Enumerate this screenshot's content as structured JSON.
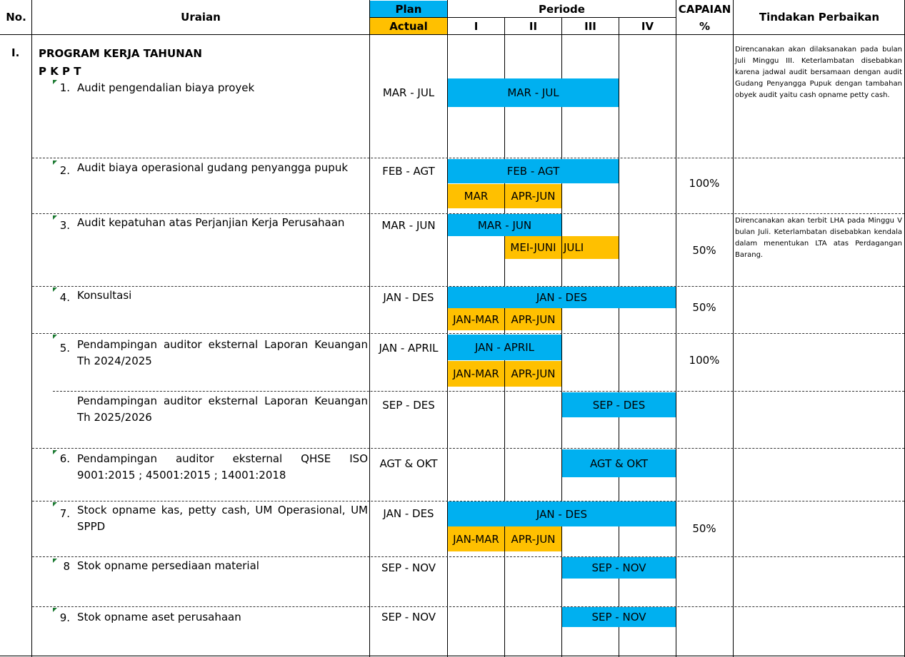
{
  "header": {
    "no": "No.",
    "uraian": "Uraian",
    "plan": "Plan",
    "actual": "Actual",
    "periode": "Periode",
    "quarters": [
      "I",
      "II",
      "III",
      "IV"
    ],
    "capaian": "CAPAIAN",
    "capaian_unit": "%",
    "tindakan": "Tindakan Perbaikan"
  },
  "section": {
    "number": "I.",
    "title": "PROGRAM KERJA TAHUNAN",
    "subtitle": "P K P T"
  },
  "rows": [
    {
      "num": "1.",
      "text": "Audit pengendalian biaya proyek",
      "plan": "MAR - JUL",
      "bar_plan": "MAR - JUL",
      "capaian": "",
      "note": "Direncanakan akan dilaksanakan pada bulan Juli Minggu III. Keterlambatan disebabkan karena jadwal audit bersamaan dengan audit Gudang Penyangga Pupuk dengan tambahan obyek audit yaitu cash opname petty cash."
    },
    {
      "num": "2.",
      "text": "Audit biaya operasional gudang penyangga pupuk",
      "plan": "FEB - AGT",
      "bar_plan": "FEB - AGT",
      "bar_actual": [
        "MAR",
        "APR-JUN"
      ],
      "capaian": "100%"
    },
    {
      "num": "3.",
      "text": "Audit kepatuhan atas Perjanjian Kerja Perusahaan",
      "plan": "MAR - JUN",
      "bar_plan": "MAR - JUN",
      "bar_actual": [
        "MEI-JUNI",
        "JULI"
      ],
      "capaian": "50%",
      "note": "Direncanakan akan terbit LHA pada Minggu V bulan Juli. Keterlambatan disebabkan kendala dalam menentukan LTA atas Perdagangan Barang."
    },
    {
      "num": "4.",
      "text": "Konsultasi",
      "plan": "JAN - DES",
      "bar_plan": "JAN - DES",
      "bar_actual": [
        "JAN-MAR",
        "APR-JUN"
      ],
      "capaian": "50%"
    },
    {
      "num": "5.",
      "text": "Pendampingan auditor eksternal Laporan Keuangan Th 2024/2025",
      "plan": "JAN - APRIL",
      "bar_plan": "JAN - APRIL",
      "bar_actual": [
        "JAN-MAR",
        "APR-JUN"
      ],
      "capaian": "100%"
    },
    {
      "num": "",
      "text": "Pendampingan auditor eksternal Laporan Keuangan Th 2025/2026",
      "plan": "SEP - DES",
      "bar_plan": "SEP - DES",
      "capaian": ""
    },
    {
      "num": "6.",
      "text": "Pendampingan auditor eksternal QHSE ISO 9001:2015 ; 45001:2015 ; 14001:2018",
      "plan": "AGT & OKT",
      "bar_plan": "AGT & OKT",
      "capaian": ""
    },
    {
      "num": "7.",
      "text": "Stock opname  kas, petty cash, UM Operasional, UM SPPD",
      "plan": "JAN - DES",
      "bar_plan": "JAN - DES",
      "bar_actual": [
        "JAN-MAR",
        "APR-JUN"
      ],
      "capaian": "50%"
    },
    {
      "num": "8",
      "text": "Stok opname persediaan material",
      "plan": "SEP - NOV",
      "bar_plan": "SEP - NOV",
      "capaian": ""
    },
    {
      "num": "9.",
      "text": "Stok opname aset perusahaan",
      "plan": "SEP - NOV",
      "bar_plan": "SEP - NOV",
      "capaian": ""
    }
  ],
  "colors": {
    "plan": "#00b0f0",
    "actual": "#ffc000",
    "comment_marker": "#1e7b34"
  }
}
